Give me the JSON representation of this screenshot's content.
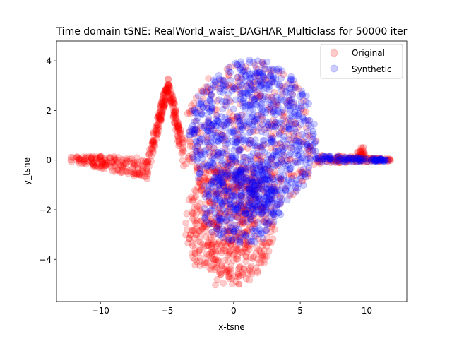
{
  "chart_data": {
    "type": "scatter",
    "title": "Time domain tSNE: RealWorld_waist_DAGHAR_Multiclass for 50000 iter",
    "xlabel": "x-tsne",
    "ylabel": "y_tsne",
    "xlim": [
      -13.3,
      13.0
    ],
    "ylim": [
      -5.7,
      4.8
    ],
    "xticks": [
      -10,
      -5,
      0,
      5,
      10
    ],
    "xtick_labels": [
      "−10",
      "−5",
      "0",
      "5",
      "10"
    ],
    "yticks": [
      -4,
      -2,
      0,
      2,
      4
    ],
    "ytick_labels": [
      "−4",
      "−2",
      "0",
      "2",
      "4"
    ],
    "grid": false,
    "legend_position": "top-right",
    "marker_alpha": 0.2,
    "series": [
      {
        "name": "Original",
        "color": "#ff0000",
        "regions": [
          {
            "shape": "band",
            "x_from": -12.3,
            "x_to": -6.5,
            "y_center_from": 0.05,
            "y_center_to": -0.3,
            "half_width_from": 0.12,
            "half_width_to": 0.45,
            "count": 170
          },
          {
            "shape": "band",
            "x_from": -6.5,
            "x_to": -4.9,
            "y_center_from": -0.3,
            "y_center_to": 3.1,
            "half_width_from": 0.45,
            "half_width_to": 0.3,
            "count": 140
          },
          {
            "shape": "band",
            "x_from": -4.9,
            "x_to": -3.7,
            "y_center_from": 3.0,
            "y_center_to": 0.0,
            "half_width_from": 0.3,
            "half_width_to": 0.6,
            "count": 90
          },
          {
            "shape": "blob",
            "cx": -0.3,
            "cy": -2.6,
            "rx": 3.4,
            "ry": 2.5,
            "count": 520
          },
          {
            "shape": "blob",
            "cx": 1.2,
            "cy": 0.8,
            "rx": 5.0,
            "ry": 3.2,
            "count": 380
          },
          {
            "shape": "band",
            "x_from": 6.3,
            "x_to": 11.8,
            "y_center_from": 0.05,
            "y_center_to": 0.0,
            "half_width_from": 0.2,
            "half_width_to": 0.05,
            "count": 110
          },
          {
            "shape": "blob",
            "cx": 9.6,
            "cy": 0.25,
            "rx": 0.3,
            "ry": 0.2,
            "count": 30
          }
        ]
      },
      {
        "name": "Synthetic",
        "color": "#0000ff",
        "regions": [
          {
            "shape": "blob",
            "cx": 1.4,
            "cy": 0.9,
            "rx": 4.8,
            "ry": 3.1,
            "count": 900
          },
          {
            "shape": "blob",
            "cx": 0.6,
            "cy": -1.8,
            "rx": 3.0,
            "ry": 1.6,
            "count": 260
          },
          {
            "shape": "band",
            "x_from": 6.0,
            "x_to": 11.6,
            "y_center_from": 0.05,
            "y_center_to": 0.0,
            "half_width_from": 0.15,
            "half_width_to": 0.04,
            "count": 120
          }
        ]
      }
    ]
  }
}
